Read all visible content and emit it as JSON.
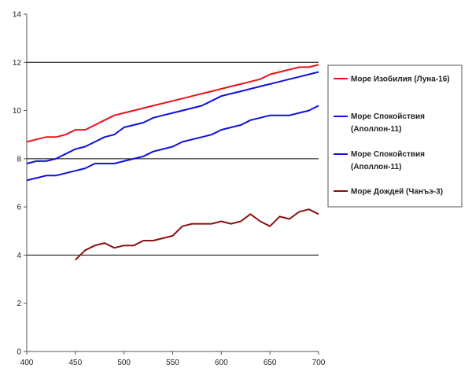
{
  "chart_data": {
    "type": "line",
    "title": "",
    "xlabel": "",
    "ylabel": "",
    "xlim": [
      400,
      700
    ],
    "ylim": [
      0,
      14
    ],
    "x_ticks": [
      400,
      450,
      500,
      550,
      600,
      650,
      700
    ],
    "y_ticks": [
      0,
      2,
      4,
      6,
      8,
      10,
      12,
      14
    ],
    "grid": {
      "horizontal_major": true,
      "vertical": false
    },
    "legend_placement": "right",
    "series": [
      {
        "name": "Море Изобилия (Луна-16)",
        "color": "#e8131a",
        "points": [
          [
            400,
            8.7
          ],
          [
            410,
            8.8
          ],
          [
            420,
            8.9
          ],
          [
            430,
            8.9
          ],
          [
            440,
            9.0
          ],
          [
            450,
            9.2
          ],
          [
            460,
            9.2
          ],
          [
            470,
            9.4
          ],
          [
            480,
            9.6
          ],
          [
            490,
            9.8
          ],
          [
            500,
            9.9
          ],
          [
            510,
            10.0
          ],
          [
            520,
            10.1
          ],
          [
            530,
            10.2
          ],
          [
            540,
            10.3
          ],
          [
            550,
            10.4
          ],
          [
            560,
            10.5
          ],
          [
            570,
            10.6
          ],
          [
            580,
            10.7
          ],
          [
            590,
            10.8
          ],
          [
            600,
            10.9
          ],
          [
            610,
            11.0
          ],
          [
            620,
            11.1
          ],
          [
            630,
            11.2
          ],
          [
            640,
            11.3
          ],
          [
            650,
            11.5
          ],
          [
            660,
            11.6
          ],
          [
            670,
            11.7
          ],
          [
            680,
            11.8
          ],
          [
            690,
            11.8
          ],
          [
            700,
            11.9
          ]
        ]
      },
      {
        "name": "Море Спокойствия (Аполлон-11)",
        "color": "#1010e0",
        "points": [
          [
            400,
            7.8
          ],
          [
            410,
            7.9
          ],
          [
            420,
            7.9
          ],
          [
            430,
            8.0
          ],
          [
            440,
            8.2
          ],
          [
            450,
            8.4
          ],
          [
            460,
            8.5
          ],
          [
            470,
            8.7
          ],
          [
            480,
            8.9
          ],
          [
            490,
            9.0
          ],
          [
            500,
            9.3
          ],
          [
            510,
            9.4
          ],
          [
            520,
            9.5
          ],
          [
            530,
            9.7
          ],
          [
            540,
            9.8
          ],
          [
            550,
            9.9
          ],
          [
            560,
            10.0
          ],
          [
            570,
            10.1
          ],
          [
            580,
            10.2
          ],
          [
            590,
            10.4
          ],
          [
            600,
            10.6
          ],
          [
            610,
            10.7
          ],
          [
            620,
            10.8
          ],
          [
            630,
            10.9
          ],
          [
            640,
            11.0
          ],
          [
            650,
            11.1
          ],
          [
            660,
            11.2
          ],
          [
            670,
            11.3
          ],
          [
            680,
            11.4
          ],
          [
            690,
            11.5
          ],
          [
            700,
            11.6
          ]
        ]
      },
      {
        "name": "Море Спокойствия (Аполлон-11)",
        "color": "#1010e0",
        "points": [
          [
            400,
            7.1
          ],
          [
            410,
            7.2
          ],
          [
            420,
            7.3
          ],
          [
            430,
            7.3
          ],
          [
            440,
            7.4
          ],
          [
            450,
            7.5
          ],
          [
            460,
            7.6
          ],
          [
            470,
            7.8
          ],
          [
            480,
            7.8
          ],
          [
            490,
            7.8
          ],
          [
            500,
            7.9
          ],
          [
            510,
            8.0
          ],
          [
            520,
            8.1
          ],
          [
            530,
            8.3
          ],
          [
            540,
            8.4
          ],
          [
            550,
            8.5
          ],
          [
            560,
            8.7
          ],
          [
            570,
            8.8
          ],
          [
            580,
            8.9
          ],
          [
            590,
            9.0
          ],
          [
            600,
            9.2
          ],
          [
            610,
            9.3
          ],
          [
            620,
            9.4
          ],
          [
            630,
            9.6
          ],
          [
            640,
            9.7
          ],
          [
            650,
            9.8
          ],
          [
            660,
            9.8
          ],
          [
            670,
            9.8
          ],
          [
            680,
            9.9
          ],
          [
            690,
            10.0
          ],
          [
            700,
            10.2
          ]
        ]
      },
      {
        "name": "Море Дождей (Чанъэ-3)",
        "color": "#8b1010",
        "points": [
          [
            450,
            3.8
          ],
          [
            460,
            4.2
          ],
          [
            470,
            4.4
          ],
          [
            480,
            4.5
          ],
          [
            490,
            4.3
          ],
          [
            500,
            4.4
          ],
          [
            510,
            4.4
          ],
          [
            520,
            4.6
          ],
          [
            530,
            4.6
          ],
          [
            540,
            4.7
          ],
          [
            550,
            4.8
          ],
          [
            560,
            5.2
          ],
          [
            570,
            5.3
          ],
          [
            580,
            5.3
          ],
          [
            590,
            5.3
          ],
          [
            600,
            5.4
          ],
          [
            610,
            5.3
          ],
          [
            620,
            5.4
          ],
          [
            630,
            5.7
          ],
          [
            640,
            5.4
          ],
          [
            650,
            5.2
          ],
          [
            660,
            5.6
          ],
          [
            670,
            5.5
          ],
          [
            680,
            5.8
          ],
          [
            690,
            5.9
          ],
          [
            700,
            5.7
          ]
        ]
      }
    ]
  }
}
